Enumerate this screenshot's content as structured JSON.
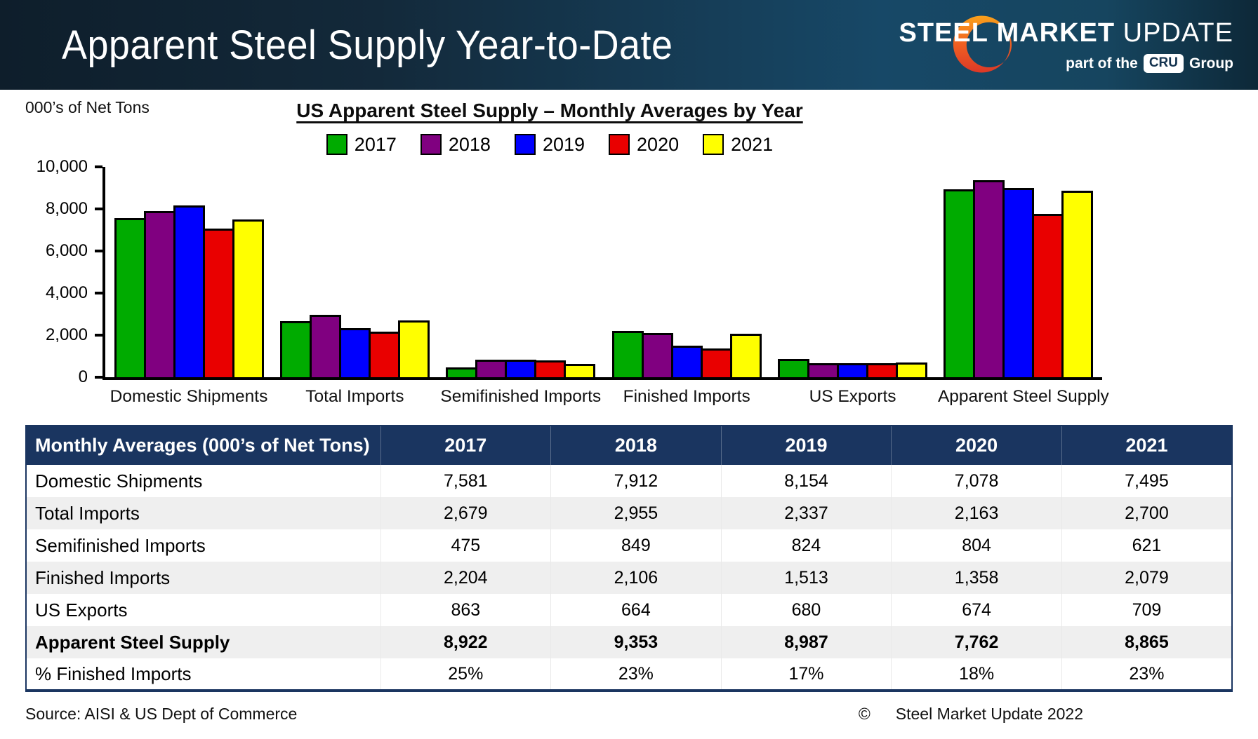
{
  "header": {
    "title": "Apparent Steel Supply Year-to-Date",
    "logo": {
      "steel": "STEEL",
      "market": "MARKET",
      "update": "UPDATE",
      "tagline_prefix": "part of the",
      "cru": "CRU",
      "tagline_suffix": "Group"
    }
  },
  "chart_data": {
    "type": "bar",
    "title": "US Apparent Steel Supply – Monthly Averages by Year",
    "ylabel": "000’s of Net Tons",
    "xlabel": "",
    "ylim": [
      0,
      10000
    ],
    "yticks": [
      0,
      2000,
      4000,
      6000,
      8000,
      10000
    ],
    "grid": false,
    "legend_position": "top",
    "categories": [
      "Domestic Shipments",
      "Total Imports",
      "Semifinished Imports",
      "Finished Imports",
      "US Exports",
      "Apparent Steel Supply"
    ],
    "series": [
      {
        "name": "2017",
        "color": "#00ab00",
        "values": [
          7581,
          2679,
          475,
          2204,
          863,
          8922
        ]
      },
      {
        "name": "2018",
        "color": "#800080",
        "values": [
          7912,
          2955,
          849,
          2106,
          664,
          9353
        ]
      },
      {
        "name": "2019",
        "color": "#0000fe",
        "values": [
          8154,
          2337,
          824,
          1513,
          680,
          8987
        ]
      },
      {
        "name": "2020",
        "color": "#e90000",
        "values": [
          7078,
          2163,
          804,
          1358,
          674,
          7762
        ]
      },
      {
        "name": "2021",
        "color": "#ffff00",
        "values": [
          7495,
          2700,
          621,
          2079,
          709,
          8865
        ]
      }
    ]
  },
  "table": {
    "header": [
      "Monthly Averages (000’s of Net Tons)",
      "2017",
      "2018",
      "2019",
      "2020",
      "2021"
    ],
    "rows": [
      {
        "label": "Domestic Shipments",
        "values": [
          "7,581",
          "7,912",
          "8,154",
          "7,078",
          "7,495"
        ],
        "bold": false
      },
      {
        "label": "Total Imports",
        "values": [
          "2,679",
          "2,955",
          "2,337",
          "2,163",
          "2,700"
        ],
        "bold": false
      },
      {
        "label": "Semifinished Imports",
        "values": [
          "475",
          "849",
          "824",
          "804",
          "621"
        ],
        "bold": false
      },
      {
        "label": "Finished Imports",
        "values": [
          "2,204",
          "2,106",
          "1,513",
          "1,358",
          "2,079"
        ],
        "bold": false
      },
      {
        "label": "US Exports",
        "values": [
          "863",
          "664",
          "680",
          "674",
          "709"
        ],
        "bold": false
      },
      {
        "label": "Apparent Steel Supply",
        "values": [
          "8,922",
          "9,353",
          "8,987",
          "7,762",
          "8,865"
        ],
        "bold": true
      },
      {
        "label": "% Finished Imports",
        "values": [
          "25%",
          "23%",
          "17%",
          "18%",
          "23%"
        ],
        "bold": false
      }
    ]
  },
  "footer": {
    "source": "Source:  AISI & US Dept of Commerce",
    "copyright_symbol": "©",
    "copyright_text": "Steel Market Update 2022"
  }
}
